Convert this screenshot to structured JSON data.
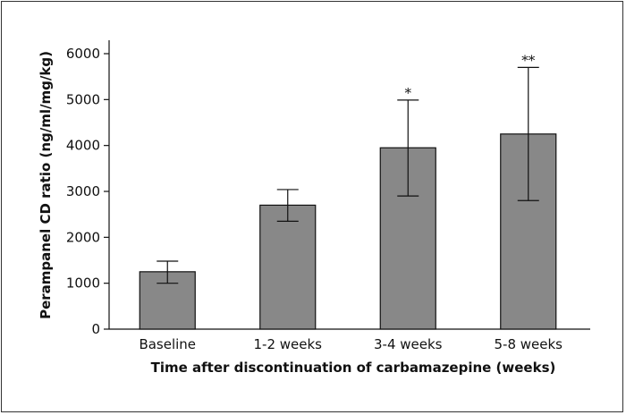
{
  "chart_data": {
    "type": "bar",
    "title": "",
    "xlabel": "Time after discontinuation of carbamazepine (weeks)",
    "ylabel": "Perampanel CD ratio (ng/ml/mg/kg)",
    "categories": [
      "Baseline",
      "1-2 weeks",
      "3-4 weeks",
      "5-8 weeks"
    ],
    "values": [
      1250,
      2700,
      3950,
      4250
    ],
    "error_low": [
      1000,
      2350,
      2900,
      2800
    ],
    "error_high": [
      1480,
      3040,
      4990,
      5700
    ],
    "annotations": [
      "",
      "",
      "*",
      "**"
    ],
    "ylim": [
      0,
      6000
    ],
    "yticks": [
      0,
      1000,
      2000,
      3000,
      4000,
      5000,
      6000
    ],
    "grid": false,
    "colors": {
      "bar": "#888888",
      "bar_edge": "#111111",
      "axis": "#111111"
    }
  }
}
